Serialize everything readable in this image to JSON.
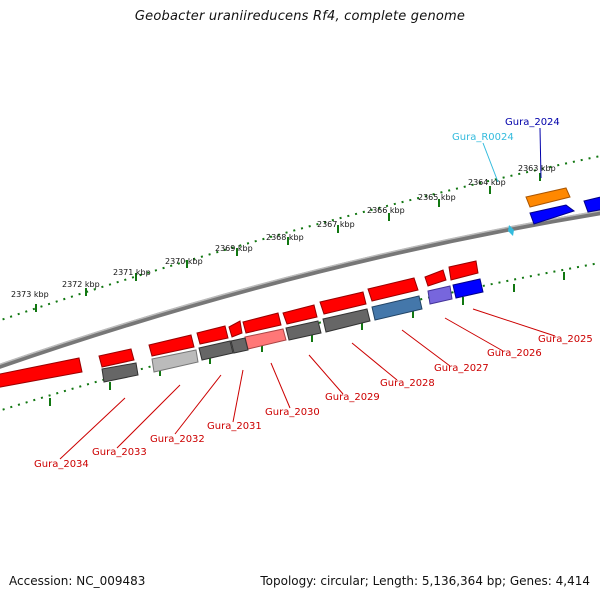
{
  "title": "Geobacter uraniireducens Rf4, complete genome",
  "footer": {
    "accession": "Accession: NC_009483",
    "stats": "Topology: circular; Length: 5,136,364 bp; Genes: 4,414"
  },
  "colors": {
    "gene_red": "#ff0000",
    "gene_gray": "#666666",
    "gene_lightgray": "#bbbbbb",
    "gene_blue": "#0000ff",
    "gene_steelblue": "#4477aa",
    "gene_purple": "#7766dd",
    "gene_pink": "#ff7777",
    "gene_orange": "#ff8800",
    "label_red": "#cc0000",
    "label_blue": "#0000aa",
    "label_cyan": "#33bbdd",
    "tick_green": "#117711",
    "backbone": "#888888"
  },
  "kbp_labels": [
    "2373 kbp",
    "2372 kbp",
    "2371 kbp",
    "2370 kbp",
    "2369 kbp",
    "2368 kbp",
    "2367 kbp",
    "2366 kbp",
    "2365 kbp",
    "2364 kbp",
    "2363 kbp"
  ],
  "gene_labels": {
    "gura_2024": "Gura_2024",
    "gura_r0024": "Gura_R0024",
    "gura_2025": "Gura_2025",
    "gura_2026": "Gura_2026",
    "gura_2027": "Gura_2027",
    "gura_2028": "Gura_2028",
    "gura_2029": "Gura_2029",
    "gura_2030": "Gura_2030",
    "gura_2031": "Gura_2031",
    "gura_2032": "Gura_2032",
    "gura_2033": "Gura_2033",
    "gura_2034": "Gura_2034"
  }
}
